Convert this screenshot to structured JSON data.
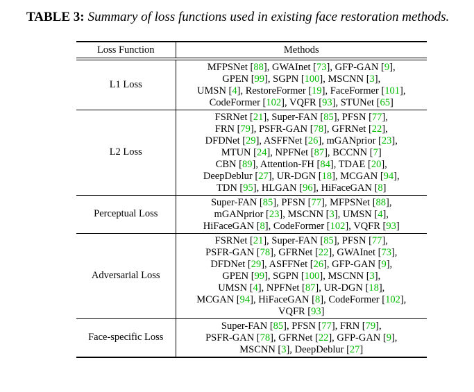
{
  "caption": {
    "label": "TABLE 3:",
    "text": "Summary of loss functions used in existing face restoration methods."
  },
  "colors": {
    "citation_green": "#00bb00",
    "text": "#000000",
    "background": "#ffffff"
  },
  "table": {
    "headers": [
      "Loss Function",
      "Methods"
    ],
    "rows": [
      {
        "loss": "L1 Loss",
        "method_lines": [
          [
            {
              "name": "MFPSNet",
              "ref": "88",
              "sep": ","
            },
            {
              "name": "GWAInet",
              "ref": "73",
              "sep": ","
            },
            {
              "name": "GFP-GAN",
              "ref": "9",
              "sep": ","
            }
          ],
          [
            {
              "name": "GPEN",
              "ref": "99",
              "sep": ","
            },
            {
              "name": "SGPN",
              "ref": "100",
              "sep": ","
            },
            {
              "name": "MSCNN",
              "ref": "3",
              "sep": ","
            }
          ],
          [
            {
              "name": "UMSN",
              "ref": "4",
              "sep": ","
            },
            {
              "name": "RestoreFormer",
              "ref": "19",
              "sep": ","
            },
            {
              "name": "FaceFormer",
              "ref": "101",
              "sep": ","
            }
          ],
          [
            {
              "name": "CodeFormer",
              "ref": "102",
              "sep": ","
            },
            {
              "name": "VQFR",
              "ref": "93",
              "sep": ","
            },
            {
              "name": "STUNet",
              "ref": "65",
              "sep": ""
            }
          ]
        ]
      },
      {
        "loss": "L2 Loss",
        "method_lines": [
          [
            {
              "name": "FSRNet",
              "ref": "21",
              "sep": ","
            },
            {
              "name": "Super-FAN",
              "ref": "85",
              "sep": ","
            },
            {
              "name": "PFSN",
              "ref": "77",
              "sep": ","
            }
          ],
          [
            {
              "name": "FRN",
              "ref": "79",
              "sep": ","
            },
            {
              "name": "PSFR-GAN",
              "ref": "78",
              "sep": ","
            },
            {
              "name": "GFRNet",
              "ref": "22",
              "sep": ","
            }
          ],
          [
            {
              "name": "DFDNet",
              "ref": "29",
              "sep": ","
            },
            {
              "name": "ASFFNet",
              "ref": "26",
              "sep": ","
            },
            {
              "name": "mGANprior",
              "ref": "23",
              "sep": ","
            }
          ],
          [
            {
              "name": "MTUN",
              "ref": "24",
              "sep": ","
            },
            {
              "name": "NPFNet",
              "ref": "87",
              "sep": ","
            },
            {
              "name": "BCCNN",
              "ref": "7",
              "sep": ""
            }
          ],
          [
            {
              "name": "CBN",
              "ref": "89",
              "sep": ","
            },
            {
              "name": "Attention-FH",
              "ref": "84",
              "sep": ","
            },
            {
              "name": "TDAE",
              "ref": "20",
              "sep": ","
            }
          ],
          [
            {
              "name": "DeepDeblur",
              "ref": "27",
              "sep": ","
            },
            {
              "name": "UR-DGN",
              "ref": "18",
              "sep": ","
            },
            {
              "name": "MCGAN",
              "ref": "94",
              "sep": ","
            }
          ],
          [
            {
              "name": "TDN",
              "ref": "95",
              "sep": ","
            },
            {
              "name": "HLGAN",
              "ref": "96",
              "sep": ","
            },
            {
              "name": "HiFaceGAN",
              "ref": "8",
              "sep": ""
            }
          ]
        ]
      },
      {
        "loss": "Perceptual Loss",
        "method_lines": [
          [
            {
              "name": "Super-FAN",
              "ref": "85",
              "sep": ","
            },
            {
              "name": "PFSN",
              "ref": "77",
              "sep": ","
            },
            {
              "name": "MFPSNet",
              "ref": "88",
              "sep": ","
            }
          ],
          [
            {
              "name": "mGANprior",
              "ref": "23",
              "sep": ","
            },
            {
              "name": "MSCNN",
              "ref": "3",
              "sep": ","
            },
            {
              "name": "UMSN",
              "ref": "4",
              "sep": ","
            }
          ],
          [
            {
              "name": "HiFaceGAN",
              "ref": "8",
              "sep": ","
            },
            {
              "name": "CodeFormer",
              "ref": "102",
              "sep": ","
            },
            {
              "name": "VQFR",
              "ref": "93",
              "sep": ""
            }
          ]
        ]
      },
      {
        "loss": "Adversarial Loss",
        "method_lines": [
          [
            {
              "name": "FSRNet",
              "ref": "21",
              "sep": ","
            },
            {
              "name": "Super-FAN",
              "ref": "85",
              "sep": ","
            },
            {
              "name": "PFSN",
              "ref": "77",
              "sep": ","
            }
          ],
          [
            {
              "name": "PSFR-GAN",
              "ref": "78",
              "sep": ","
            },
            {
              "name": "GFRNet",
              "ref": "22",
              "sep": ","
            },
            {
              "name": "GWAInet",
              "ref": "73",
              "sep": ","
            }
          ],
          [
            {
              "name": "DFDNet",
              "ref": "29",
              "sep": ","
            },
            {
              "name": "ASFFNet",
              "ref": "26",
              "sep": ","
            },
            {
              "name": "GFP-GAN",
              "ref": "9",
              "sep": ","
            }
          ],
          [
            {
              "name": "GPEN",
              "ref": "99",
              "sep": ","
            },
            {
              "name": "SGPN",
              "ref": "100",
              "sep": ","
            },
            {
              "name": "MSCNN",
              "ref": "3",
              "sep": ","
            }
          ],
          [
            {
              "name": "UMSN",
              "ref": "4",
              "sep": ","
            },
            {
              "name": "NPFNet",
              "ref": "87",
              "sep": ","
            },
            {
              "name": "UR-DGN",
              "ref": "18",
              "sep": ","
            }
          ],
          [
            {
              "name": "MCGAN",
              "ref": "94",
              "sep": ","
            },
            {
              "name": "HiFaceGAN",
              "ref": "8",
              "sep": ","
            },
            {
              "name": "CodeFormer",
              "ref": "102",
              "sep": ","
            }
          ],
          [
            {
              "name": "VQFR",
              "ref": "93",
              "sep": ""
            }
          ]
        ]
      },
      {
        "loss": "Face-specific Loss",
        "method_lines": [
          [
            {
              "name": "Super-FAN",
              "ref": "85",
              "sep": ","
            },
            {
              "name": "PFSN",
              "ref": "77",
              "sep": ","
            },
            {
              "name": "FRN",
              "ref": "79",
              "sep": ","
            }
          ],
          [
            {
              "name": "PSFR-GAN",
              "ref": "78",
              "sep": ","
            },
            {
              "name": "GFRNet",
              "ref": "22",
              "sep": ","
            },
            {
              "name": "GFP-GAN",
              "ref": "9",
              "sep": ","
            }
          ],
          [
            {
              "name": "MSCNN",
              "ref": "3",
              "sep": ","
            },
            {
              "name": "DeepDeblur",
              "ref": "27",
              "sep": ""
            }
          ]
        ]
      }
    ]
  }
}
